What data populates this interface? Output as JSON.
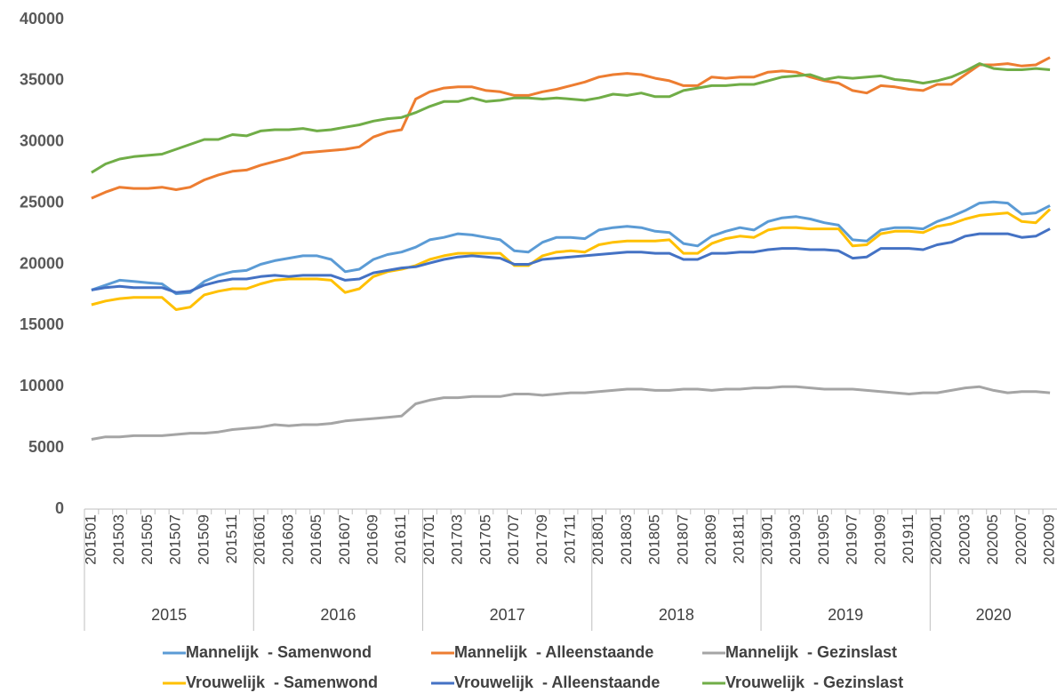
{
  "chart_data": {
    "type": "line",
    "categories": [
      "201501",
      null,
      "201503",
      null,
      "201505",
      null,
      "201507",
      null,
      "201509",
      null,
      "201511",
      null,
      "201601",
      null,
      "201603",
      null,
      "201605",
      null,
      "201607",
      null,
      "201609",
      null,
      "201611",
      null,
      "201701",
      null,
      "201703",
      null,
      "201705",
      null,
      "201707",
      null,
      "201709",
      null,
      "201711",
      null,
      "201801",
      null,
      "201803",
      null,
      "201805",
      null,
      "201807",
      null,
      "201809",
      null,
      "201811",
      null,
      "201901",
      null,
      "201903",
      null,
      "201905",
      null,
      "201907",
      null,
      "201909",
      null,
      "201911",
      null,
      "202001",
      null,
      "202003",
      null,
      "202005",
      null,
      "202007",
      null,
      "202009"
    ],
    "x_groups": [
      "2015",
      "2016",
      "2017",
      "2018",
      "2019",
      "2020"
    ],
    "ylim": [
      0,
      40000
    ],
    "yticks": [
      0,
      5000,
      10000,
      15000,
      20000,
      25000,
      30000,
      35000,
      40000
    ],
    "grid": false,
    "series": [
      {
        "name": "Mannelijk  - Samenwond",
        "color": "#5b9bd5",
        "values": [
          17900,
          18300,
          18700,
          18600,
          18500,
          18400,
          17600,
          17700,
          18600,
          19100,
          19400,
          19500,
          20000,
          20300,
          20500,
          20700,
          20700,
          20400,
          19400,
          19600,
          20400,
          20800,
          21000,
          21400,
          22000,
          22200,
          22500,
          22400,
          22200,
          22000,
          21100,
          21000,
          21800,
          22200,
          22200,
          22100,
          22800,
          23000,
          23100,
          23000,
          22700,
          22600,
          21700,
          21500,
          22300,
          22700,
          23000,
          22800,
          23500,
          23800,
          23900,
          23700,
          23400,
          23200,
          22000,
          21900,
          22800,
          23000,
          23000,
          22900,
          23500,
          23900,
          24400,
          25000,
          25100,
          25000,
          24100,
          24200,
          24800
        ]
      },
      {
        "name": "Mannelijk  - Alleenstaande",
        "color": "#ed7d31",
        "values": [
          25400,
          25900,
          26300,
          26200,
          26200,
          26300,
          26100,
          26300,
          26900,
          27300,
          27600,
          27700,
          28100,
          28400,
          28700,
          29100,
          29200,
          29300,
          29400,
          29600,
          30400,
          30800,
          31000,
          33500,
          34100,
          34400,
          34500,
          34500,
          34200,
          34100,
          33800,
          33800,
          34100,
          34300,
          34600,
          34900,
          35300,
          35500,
          35600,
          35500,
          35200,
          35000,
          34600,
          34600,
          35300,
          35200,
          35300,
          35300,
          35700,
          35800,
          35700,
          35300,
          35000,
          34800,
          34200,
          34000,
          34600,
          34500,
          34300,
          34200,
          34700,
          34700,
          35500,
          36300,
          36300,
          36400,
          36200,
          36300,
          36900
        ]
      },
      {
        "name": "Mannelijk  - Gezinslast",
        "color": "#a5a5a5",
        "values": [
          5700,
          5900,
          5900,
          6000,
          6000,
          6000,
          6100,
          6200,
          6200,
          6300,
          6500,
          6600,
          6700,
          6900,
          6800,
          6900,
          6900,
          7000,
          7200,
          7300,
          7400,
          7500,
          7600,
          8600,
          8900,
          9100,
          9100,
          9200,
          9200,
          9200,
          9400,
          9400,
          9300,
          9400,
          9500,
          9500,
          9600,
          9700,
          9800,
          9800,
          9700,
          9700,
          9800,
          9800,
          9700,
          9800,
          9800,
          9900,
          9900,
          10000,
          10000,
          9900,
          9800,
          9800,
          9800,
          9700,
          9600,
          9500,
          9400,
          9500,
          9500,
          9700,
          9900,
          10000,
          9700,
          9500,
          9600,
          9600,
          9500
        ]
      },
      {
        "name": "Vrouwelijk  - Samenwond",
        "color": "#ffc000",
        "values": [
          16700,
          17000,
          17200,
          17300,
          17300,
          17300,
          16300,
          16500,
          17500,
          17800,
          18000,
          18000,
          18400,
          18700,
          18800,
          18800,
          18800,
          18700,
          17700,
          18000,
          19000,
          19400,
          19600,
          19900,
          20400,
          20700,
          20900,
          20900,
          20900,
          20900,
          19900,
          19900,
          20700,
          21000,
          21100,
          21000,
          21600,
          21800,
          21900,
          21900,
          21900,
          22000,
          20900,
          20900,
          21700,
          22100,
          22300,
          22200,
          22800,
          23000,
          23000,
          22900,
          22900,
          22900,
          21500,
          21600,
          22500,
          22700,
          22700,
          22600,
          23100,
          23300,
          23700,
          24000,
          24100,
          24200,
          23500,
          23400,
          24500
        ]
      },
      {
        "name": "Vrouwelijk  - Alleenstaande",
        "color": "#4472c4",
        "values": [
          17900,
          18100,
          18200,
          18100,
          18100,
          18100,
          17700,
          17800,
          18300,
          18600,
          18800,
          18800,
          19000,
          19100,
          19000,
          19100,
          19100,
          19100,
          18700,
          18800,
          19300,
          19500,
          19700,
          19800,
          20100,
          20400,
          20600,
          20700,
          20600,
          20500,
          20000,
          20000,
          20400,
          20500,
          20600,
          20700,
          20800,
          20900,
          21000,
          21000,
          20900,
          20900,
          20400,
          20400,
          20900,
          20900,
          21000,
          21000,
          21200,
          21300,
          21300,
          21200,
          21200,
          21100,
          20500,
          20600,
          21300,
          21300,
          21300,
          21200,
          21600,
          21800,
          22300,
          22500,
          22500,
          22500,
          22200,
          22300,
          22900
        ]
      },
      {
        "name": "Vrouwelijk  - Gezinslast",
        "color": "#70ad47",
        "values": [
          27500,
          28200,
          28600,
          28800,
          28900,
          29000,
          29400,
          29800,
          30200,
          30200,
          30600,
          30500,
          30900,
          31000,
          31000,
          31100,
          30900,
          31000,
          31200,
          31400,
          31700,
          31900,
          32000,
          32400,
          32900,
          33300,
          33300,
          33600,
          33300,
          33400,
          33600,
          33600,
          33500,
          33600,
          33500,
          33400,
          33600,
          33900,
          33800,
          34000,
          33700,
          33700,
          34200,
          34400,
          34600,
          34600,
          34700,
          34700,
          35000,
          35300,
          35400,
          35500,
          35100,
          35300,
          35200,
          35300,
          35400,
          35100,
          35000,
          34800,
          35000,
          35300,
          35800,
          36400,
          36000,
          35900,
          35900,
          36000,
          35900
        ]
      }
    ]
  }
}
